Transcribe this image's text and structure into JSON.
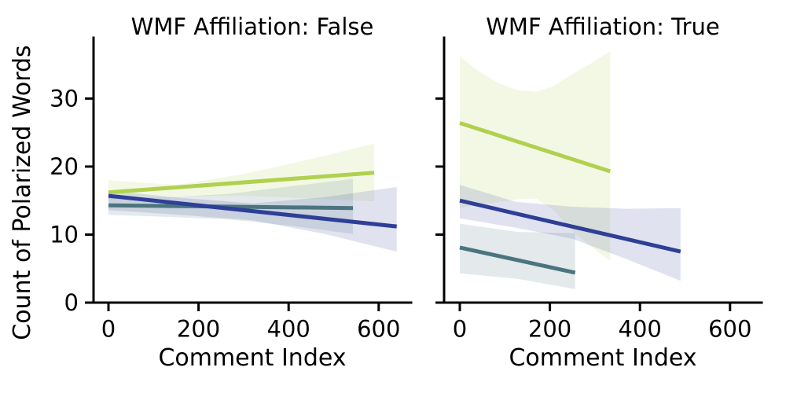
{
  "figure": {
    "background": "#ffffff",
    "text_color": "#000000",
    "spine_color": "#000000",
    "ylabel": "Count of Polarized Words",
    "xlabel": "Comment Index"
  },
  "chart_data": [
    {
      "type": "line",
      "title": "WMF Affiliation: False",
      "xlabel": "Comment Index",
      "ylabel": "Count of Polarized Words",
      "xlim": [
        -33,
        672
      ],
      "ylim": [
        0,
        38.9
      ],
      "xticks": [
        0,
        200,
        400,
        600
      ],
      "yticks": [
        0,
        10,
        20,
        30
      ],
      "show_ytick_labels": true,
      "grid": false,
      "legend": "none",
      "series": [
        {
          "name": "green-group",
          "color": "#b0d14f",
          "regression_line": {
            "x": [
              0,
              590
            ],
            "y": [
              16.2,
              19.1
            ]
          },
          "ci_band": {
            "x": [
              0,
              150,
              300,
              450,
              590
            ],
            "upper": [
              18.0,
              17.3,
              18.9,
              21.1,
              23.4
            ],
            "lower": [
              15.1,
              15.6,
              15.7,
              15.3,
              14.9
            ]
          }
        },
        {
          "name": "teal-group",
          "color": "#4a757e",
          "regression_line": {
            "x": [
              0,
              543
            ],
            "y": [
              14.3,
              13.9
            ]
          },
          "ci_band": {
            "x": [
              0,
              135,
              270,
              405,
              543
            ],
            "upper": [
              15.4,
              15.5,
              16.0,
              17.1,
              18.2
            ],
            "lower": [
              12.9,
              12.6,
              12.2,
              11.3,
              10.1
            ]
          }
        },
        {
          "name": "blue-group",
          "color": "#2d3f96",
          "regression_line": {
            "x": [
              0,
              640
            ],
            "y": [
              15.7,
              11.2
            ]
          },
          "ci_band": {
            "x": [
              0,
              160,
              320,
              480,
              640
            ],
            "upper": [
              16.5,
              15.4,
              14.6,
              15.5,
              17.0
            ],
            "lower": [
              13.6,
              12.9,
              12.1,
              10.1,
              7.5
            ]
          }
        }
      ]
    },
    {
      "type": "line",
      "title": "WMF Affiliation: True",
      "xlabel": "Comment Index",
      "ylabel": "",
      "xlim": [
        -33,
        672
      ],
      "ylim": [
        0,
        38.9
      ],
      "xticks": [
        0,
        200,
        400,
        600
      ],
      "yticks": [
        0,
        10,
        20,
        30
      ],
      "show_ytick_labels": false,
      "grid": false,
      "legend": "none",
      "series": [
        {
          "name": "green-group",
          "color": "#b0d14f",
          "regression_line": {
            "x": [
              0,
              334
            ],
            "y": [
              26.4,
              19.3
            ]
          },
          "ci_band": {
            "x": [
              0,
              45,
              85,
              130,
              170,
              210,
              250,
              292,
              334
            ],
            "upper": [
              36.2,
              33.9,
              32.3,
              31.2,
              31.0,
              31.9,
              33.6,
              35.2,
              37.0
            ],
            "lower": [
              13.9,
              14.4,
              14.8,
              15.2,
              15.3,
              13.5,
              10.5,
              8.2,
              6.1
            ]
          }
        },
        {
          "name": "teal-group",
          "color": "#4a757e",
          "regression_line": {
            "x": [
              0,
              256
            ],
            "y": [
              8.1,
              4.4
            ]
          },
          "ci_band": {
            "x": [
              0,
              128,
              256
            ],
            "upper": [
              11.6,
              10.4,
              10.2
            ],
            "lower": [
              4.3,
              3.5,
              2.0
            ]
          }
        },
        {
          "name": "blue-group",
          "color": "#2d3f96",
          "regression_line": {
            "x": [
              0,
              490
            ],
            "y": [
              15.0,
              7.5
            ]
          },
          "ci_band": {
            "x": [
              0,
              125,
              250,
              370,
              490
            ],
            "upper": [
              17.3,
              14.8,
              14.1,
              13.8,
              13.9
            ],
            "lower": [
              12.4,
              11.0,
              9.4,
              6.4,
              3.2
            ]
          }
        }
      ]
    }
  ]
}
